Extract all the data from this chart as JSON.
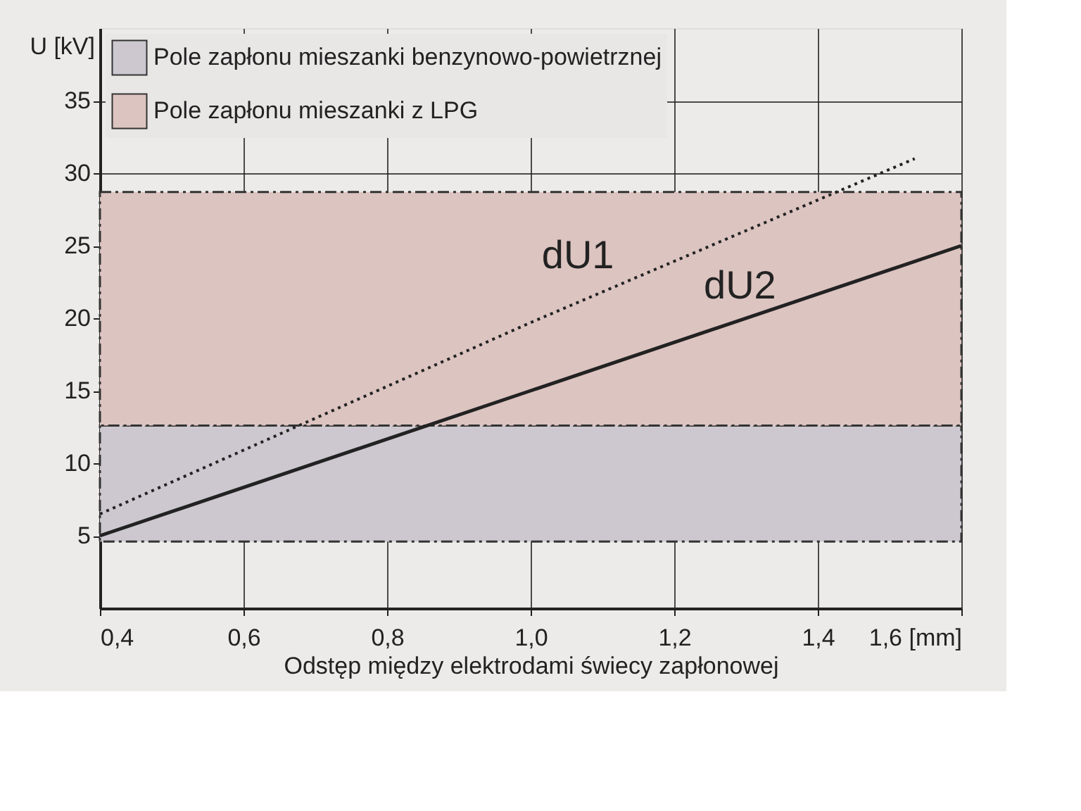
{
  "chart_data": {
    "type": "line",
    "xlabel": "Odstęp między elektrodami świecy zapłonowej",
    "ylabel": "U [kV]",
    "xlim": [
      0.4,
      1.6
    ],
    "ylim": [
      0,
      40
    ],
    "xticks": [
      {
        "value": 0.4,
        "label": "0,4"
      },
      {
        "value": 0.6,
        "label": "0,6"
      },
      {
        "value": 0.8,
        "label": "0,8"
      },
      {
        "value": 1.0,
        "label": "1,0"
      },
      {
        "value": 1.2,
        "label": "1,2"
      },
      {
        "value": 1.4,
        "label": "1,4"
      },
      {
        "value": 1.6,
        "label": "1,6 [mm]"
      }
    ],
    "yticks": [
      5,
      10,
      15,
      20,
      25,
      30,
      35
    ],
    "grid": true,
    "legend": "top left",
    "bands": [
      {
        "axis": "y",
        "from": 4.6,
        "to": 12.6,
        "label": "Pole zapłonu mieszanki benzynowo-powietrznej",
        "color": "#cdc8d0"
      },
      {
        "axis": "y",
        "from": 12.6,
        "to": 28.7,
        "label": "Pole zapłonu mieszanki z LPG",
        "color": "#dcc4c0"
      }
    ],
    "series": [
      {
        "name": "dU1",
        "x": [
          0.4,
          1.0,
          1.535
        ],
        "values": [
          6.5,
          19.7,
          31
        ],
        "color": "#222222",
        "line_style": "dotted"
      },
      {
        "name": "dU2",
        "x": [
          0.4,
          1.0,
          1.6
        ],
        "values": [
          5,
          15,
          25
        ],
        "color": "#222222",
        "line_style": "solid"
      }
    ]
  }
}
